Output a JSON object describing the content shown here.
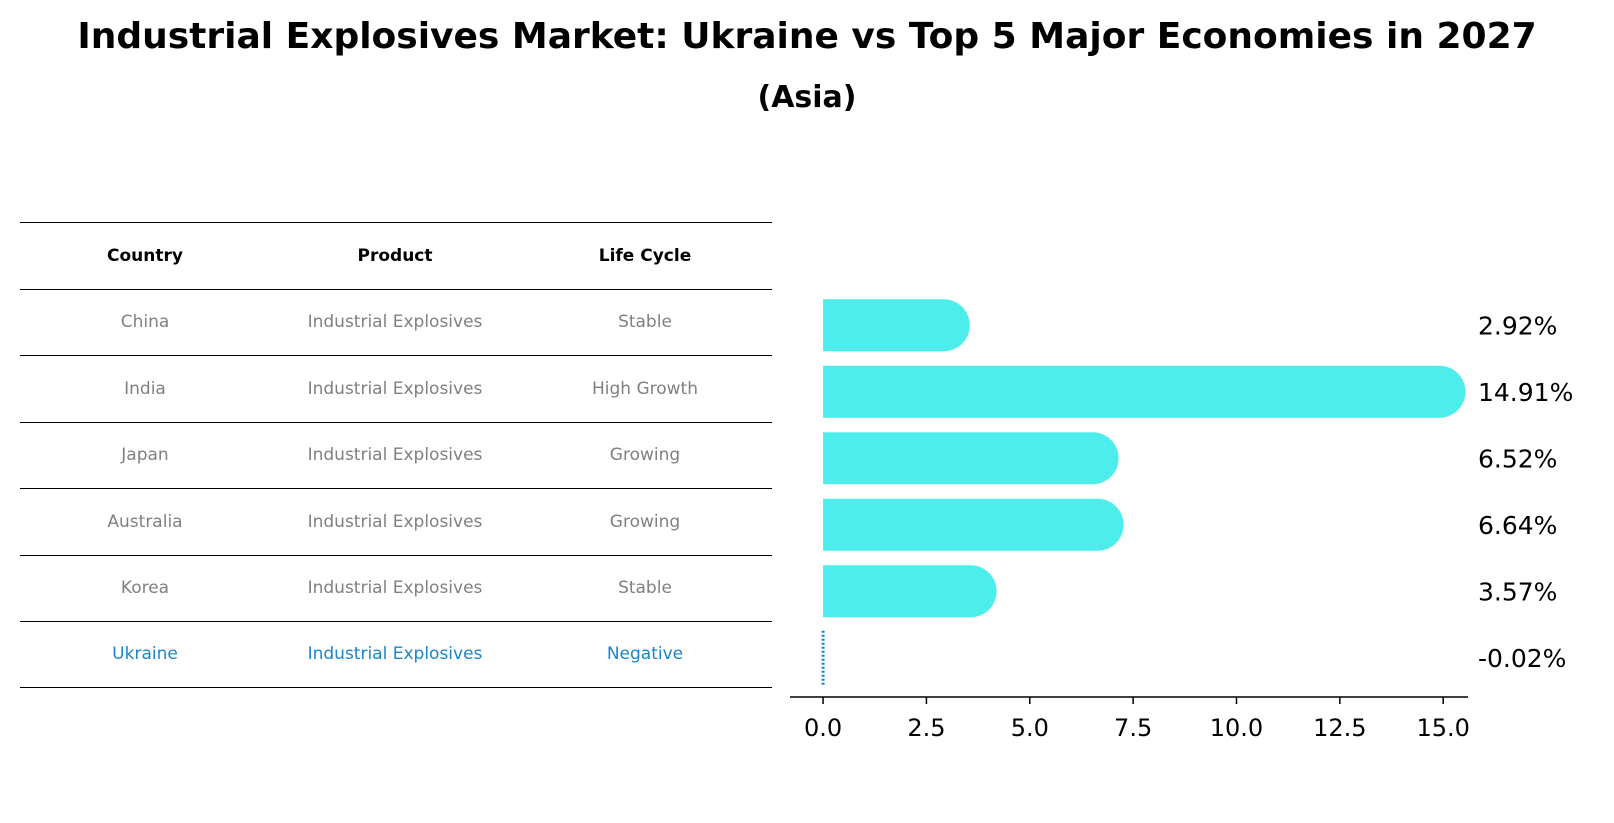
{
  "title": "Industrial Explosives Market: Ukraine vs Top 5 Major Economies in 2027",
  "subtitle": "(Asia)",
  "table": {
    "headers": [
      "Country",
      "Product",
      "Life Cycle"
    ],
    "rows": [
      [
        "China",
        "Industrial Explosives",
        "Stable"
      ],
      [
        "India",
        "Industrial Explosives",
        "High Growth"
      ],
      [
        "Japan",
        "Industrial Explosives",
        "Growing"
      ],
      [
        "Australia",
        "Industrial Explosives",
        "Growing"
      ],
      [
        "Korea",
        "Industrial Explosives",
        "Stable"
      ],
      [
        "Ukraine",
        "Industrial Explosives",
        "Negative"
      ]
    ],
    "highlight_row": 5
  },
  "colors": {
    "bar": "#4DEDEC",
    "highlight": "#1A85C8",
    "muted_text": "#808080"
  },
  "chart_data": {
    "type": "bar",
    "orientation": "horizontal",
    "categories": [
      "China",
      "India",
      "Japan",
      "Australia",
      "Korea",
      "Ukraine"
    ],
    "values": [
      2.92,
      14.91,
      6.52,
      6.64,
      3.57,
      -0.02
    ],
    "value_labels": [
      "2.92%",
      "14.91%",
      "6.52%",
      "6.64%",
      "3.57%",
      "-0.02%"
    ],
    "xlim": [
      -0.8,
      15.6
    ],
    "xticks": [
      0.0,
      2.5,
      5.0,
      7.5,
      10.0,
      12.5,
      15.0
    ],
    "xtick_labels": [
      "0.0",
      "2.5",
      "5.0",
      "7.5",
      "10.0",
      "12.5",
      "15.0"
    ],
    "xlabel": "",
    "ylabel": "",
    "grid": false,
    "legend": false
  }
}
